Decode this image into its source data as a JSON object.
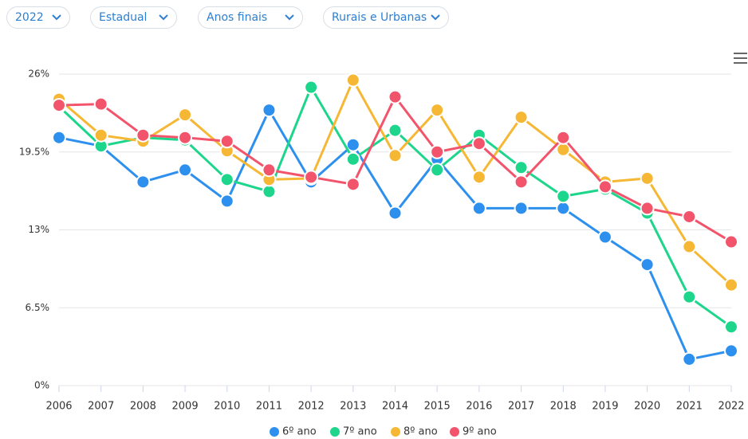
{
  "filters": [
    "2022",
    "Estadual",
    "Anos finais",
    "Rurais e Urbanas"
  ],
  "chart_data": {
    "type": "line",
    "categories": [
      "2006",
      "2007",
      "2008",
      "2009",
      "2010",
      "2011",
      "2012",
      "2013",
      "2014",
      "2015",
      "2016",
      "2017",
      "2018",
      "2019",
      "2020",
      "2021",
      "2022"
    ],
    "series": [
      {
        "name": "6º ano",
        "color": "#2e90ee",
        "values": [
          20.7,
          20.0,
          17.0,
          18.0,
          15.4,
          23.0,
          17.0,
          20.1,
          14.4,
          18.9,
          14.8,
          14.8,
          14.8,
          12.4,
          10.1,
          2.2,
          2.9
        ]
      },
      {
        "name": "7º ano",
        "color": "#1dd68c",
        "values": [
          23.3,
          20.0,
          20.7,
          20.5,
          17.2,
          16.2,
          24.9,
          18.9,
          21.3,
          18.0,
          20.9,
          18.2,
          15.8,
          16.4,
          14.4,
          7.4,
          4.9
        ]
      },
      {
        "name": "8º ano",
        "color": "#f6b734",
        "values": [
          23.9,
          20.9,
          20.4,
          22.6,
          19.6,
          17.2,
          17.3,
          25.5,
          19.2,
          23.0,
          17.4,
          22.4,
          19.7,
          17.0,
          17.3,
          11.6,
          8.4
        ]
      },
      {
        "name": "9º ano",
        "color": "#f2546c",
        "values": [
          23.4,
          23.5,
          20.9,
          20.7,
          20.4,
          18.0,
          17.4,
          16.8,
          24.1,
          19.5,
          20.2,
          17.0,
          20.7,
          16.6,
          14.8,
          14.1,
          12.0
        ]
      }
    ],
    "ylim": [
      0,
      26
    ],
    "yticks": [
      {
        "value": 0,
        "label": "0%"
      },
      {
        "value": 6.5,
        "label": "6.5%"
      },
      {
        "value": 13,
        "label": "13%"
      },
      {
        "value": 19.5,
        "label": "19.5%"
      },
      {
        "value": 26,
        "label": "26%"
      }
    ],
    "grid": true,
    "legend": "bottom"
  }
}
